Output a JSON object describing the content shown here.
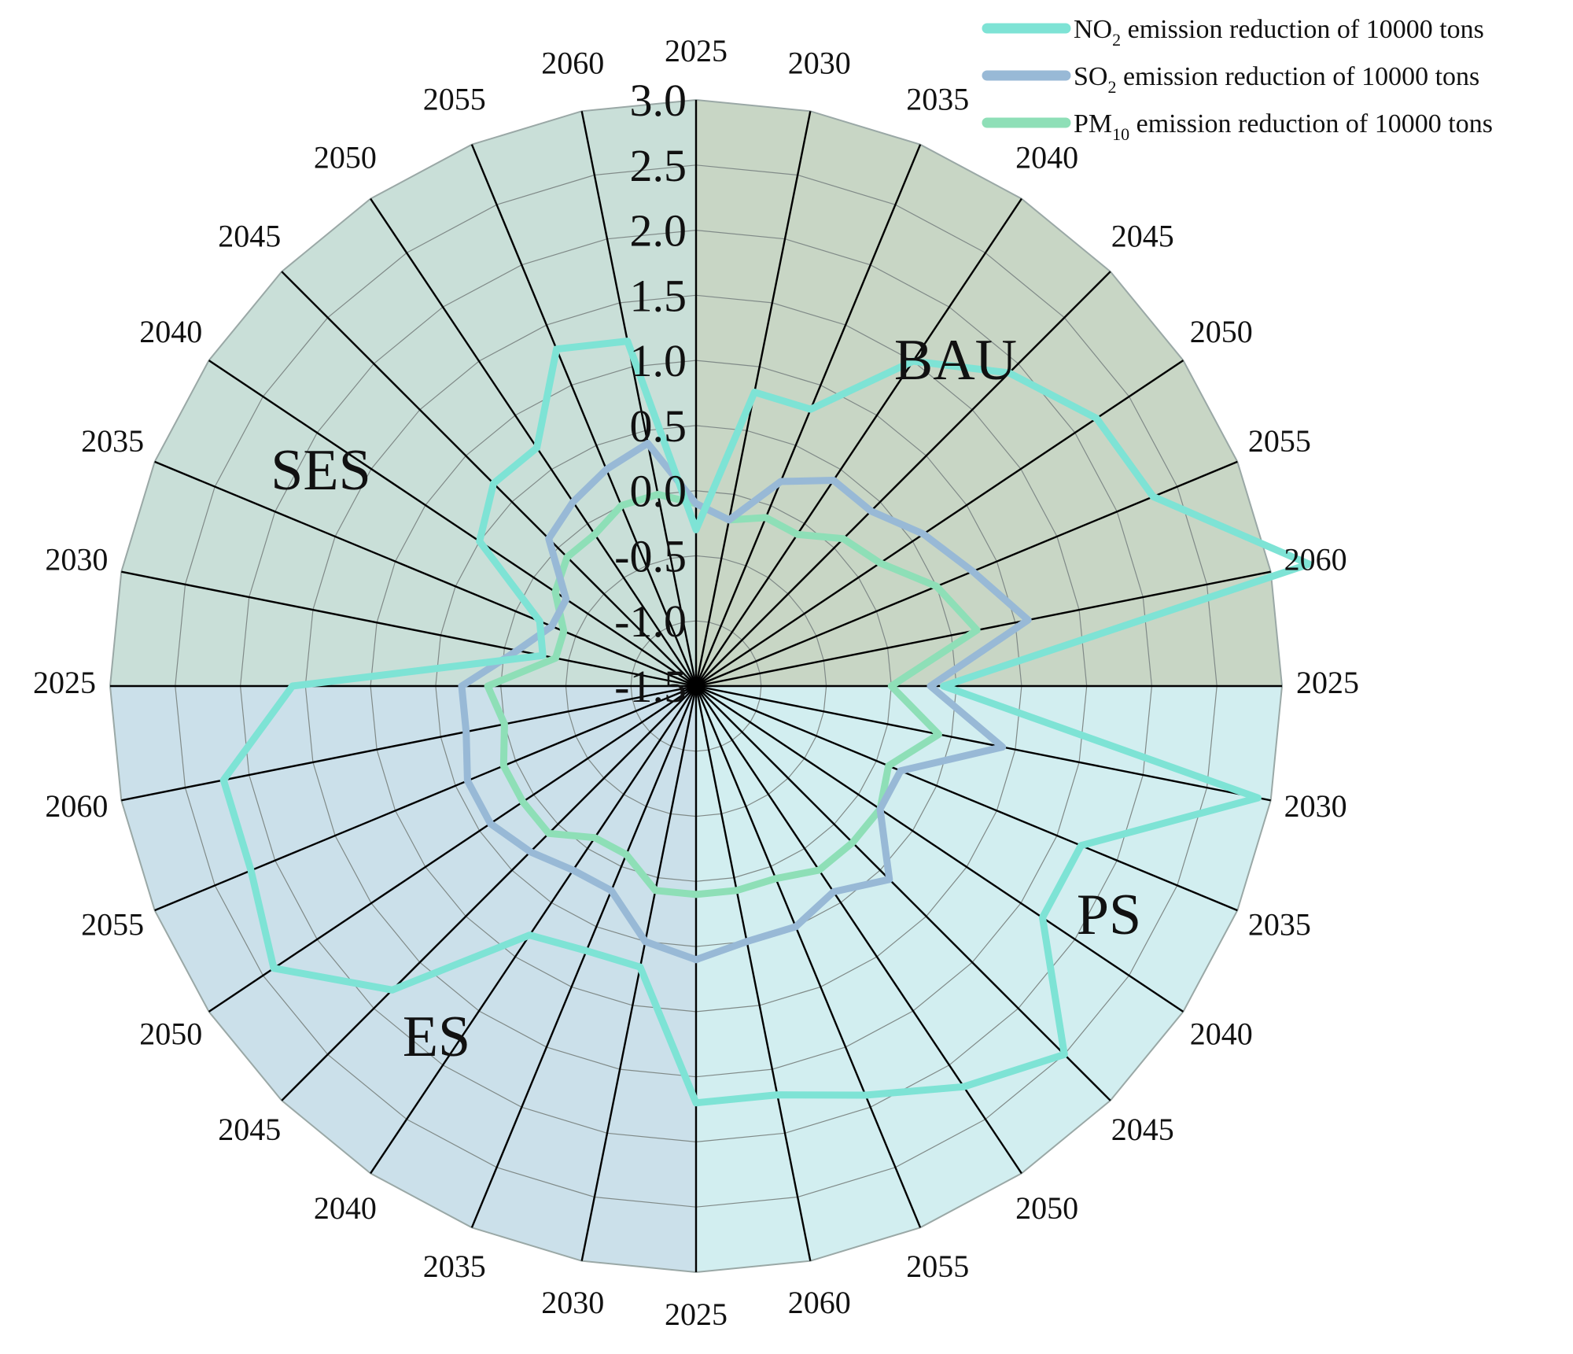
{
  "chart_data": {
    "type": "radar",
    "title": "",
    "radial_axis": {
      "ticks": [
        3.0,
        2.5,
        2.0,
        1.5,
        1.0,
        0.5,
        0.0,
        -0.5,
        -1.0,
        -1.5
      ],
      "tick_labels": [
        "3.0",
        "2.5",
        "2.0",
        "1.5",
        "1.0",
        "0.5",
        "0.0",
        "-0.5",
        "-1.0",
        "-1.5"
      ],
      "range": [
        -1.5,
        3.0
      ]
    },
    "scenarios": [
      {
        "name": "BAU",
        "color": "#c8d6c5",
        "years": [
          "2025",
          "2030",
          "2035",
          "2040",
          "2045",
          "2050",
          "2055",
          "2060"
        ]
      },
      {
        "name": "PS",
        "color": "#d2eef0",
        "years": [
          "2025",
          "2030",
          "2035",
          "2040",
          "2045",
          "2050",
          "2055",
          "2060"
        ]
      },
      {
        "name": "ES",
        "color": "#cbe0ea",
        "years": [
          "2025",
          "2030",
          "2035",
          "2040",
          "2045",
          "2050",
          "2055",
          "2060"
        ]
      },
      {
        "name": "SES",
        "color": "#c9dfd8",
        "years": [
          "2025",
          "2030",
          "2035",
          "2040",
          "2045",
          "2050",
          "2055",
          "2060"
        ]
      }
    ],
    "legend": {
      "position": "top-right",
      "entries": [
        {
          "main": "NO",
          "sub": "2",
          "rest": " emission reduction of 10000 tons"
        },
        {
          "main": "SO",
          "sub": "2",
          "rest": " emission reduction of 10000 tons"
        },
        {
          "main": "PM",
          "sub": "10",
          "rest": " emission reduction of 10000 tons"
        }
      ]
    },
    "series": [
      {
        "name": "NO2 emission reduction of 10000 tons",
        "color": "#7ee3d5",
        "values": [
          -0.3,
          0.8,
          0.8,
          1.5,
          1.9,
          2.2,
          2.3,
          3.3,
          0.4,
          2.9,
          1.7,
          1.7,
          2.5,
          2.2,
          1.9,
          1.7,
          1.7,
          0.7,
          0.7,
          0.8,
          1.8,
          2.4,
          2.2,
          2.2,
          1.6,
          -0.3,
          -0.2,
          0.5,
          0.7,
          0.7,
          1.3,
          1.2
        ]
      },
      {
        "name": "SO2 emission reduction of 10000 tons",
        "color": "#98b9d6",
        "values": [
          -0.1,
          -0.2,
          0.2,
          0.4,
          0.4,
          0.6,
          0.8,
          1.1,
          0.3,
          0.9,
          0.2,
          0.2,
          0.6,
          0.4,
          0.5,
          0.5,
          0.6,
          0.5,
          0.2,
          0.2,
          0.3,
          0.4,
          0.4,
          0.3,
          0.3,
          -0.1,
          -0.3,
          -0.3,
          0.1,
          0.2,
          0.3,
          0.4
        ]
      },
      {
        "name": "PM10 emission reduction of 10000 tons",
        "color": "#8edfb7",
        "values": [
          -0.1,
          -0.2,
          -0.1,
          -0.1,
          0.1,
          0.2,
          0.5,
          0.7,
          0.0,
          0.4,
          0.1,
          0.2,
          0.2,
          0.2,
          0.1,
          0.1,
          0.1,
          0.1,
          -0.1,
          -0.1,
          0.1,
          0.1,
          0.1,
          0.0,
          0.1,
          -0.4,
          -0.4,
          -0.2,
          -0.1,
          -0.1,
          0.0,
          0.0
        ]
      }
    ]
  }
}
